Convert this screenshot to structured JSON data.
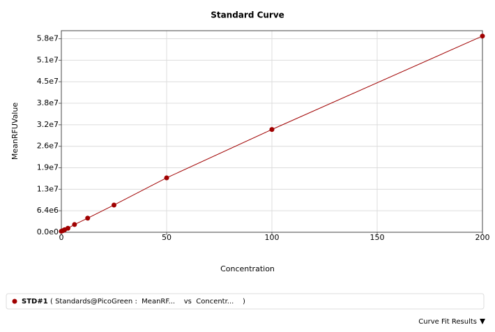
{
  "chart_data": {
    "type": "line",
    "title": "Standard Curve",
    "x_label": "Concentration",
    "y_label": "MeanRFUValue",
    "x": [
      0,
      0.78125,
      1.5625,
      3.125,
      6.25,
      12.5,
      25,
      50,
      100,
      200
    ],
    "series": [
      {
        "name": "STD#1",
        "color": "#a00000",
        "values": [
          300000,
          500000,
          750000,
          1200000,
          2300000,
          4200000,
          8100000,
          16200000,
          30600000,
          58400000
        ]
      }
    ],
    "legend_detail": "( Standards@PicoGreen :  MeanRF...    vs  Concentr...    )",
    "xlim": [
      0,
      200
    ],
    "xticks": [
      0,
      50,
      100,
      150,
      200
    ],
    "ylim": [
      0,
      60000000
    ],
    "yticks": [
      {
        "value": 0,
        "label": "0.0e0"
      },
      {
        "value": 6400000,
        "label": "6.4e6"
      },
      {
        "value": 12800000,
        "label": "1.3e7"
      },
      {
        "value": 19200000,
        "label": "1.9e7"
      },
      {
        "value": 25600000,
        "label": "2.6e7"
      },
      {
        "value": 32000000,
        "label": "3.2e7"
      },
      {
        "value": 38400000,
        "label": "3.8e7"
      },
      {
        "value": 44800000,
        "label": "4.5e7"
      },
      {
        "value": 51200000,
        "label": "5.1e7"
      },
      {
        "value": 57600000,
        "label": "5.8e7"
      }
    ],
    "grid": true
  },
  "footer": {
    "button": "Curve Fit Results"
  }
}
